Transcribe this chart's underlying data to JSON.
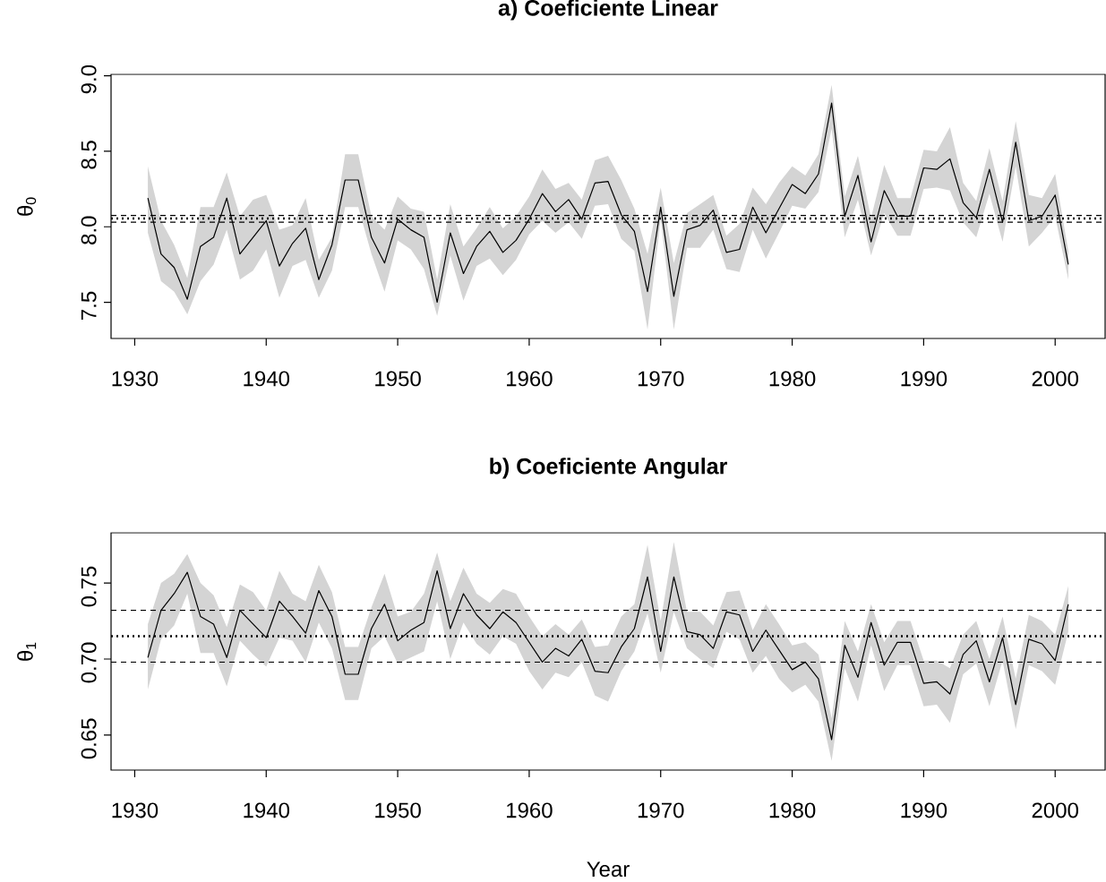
{
  "chart_data": [
    {
      "type": "line",
      "title": "a) Coeficiente Linear",
      "ylabel": "θ$_{0}$",
      "x": [
        1931,
        1932,
        1933,
        1934,
        1935,
        1936,
        1937,
        1938,
        1939,
        1940,
        1941,
        1942,
        1943,
        1944,
        1945,
        1946,
        1947,
        1948,
        1949,
        1950,
        1951,
        1952,
        1953,
        1954,
        1955,
        1956,
        1957,
        1958,
        1959,
        1960,
        1961,
        1962,
        1963,
        1964,
        1965,
        1966,
        1967,
        1968,
        1969,
        1970,
        1971,
        1972,
        1973,
        1974,
        1975,
        1976,
        1977,
        1978,
        1979,
        1980,
        1981,
        1982,
        1983,
        1984,
        1985,
        1986,
        1987,
        1988,
        1989,
        1990,
        1991,
        1992,
        1993,
        1994,
        1995,
        1996,
        1997,
        1998,
        1999,
        2000,
        2001
      ],
      "xlim": [
        1928.2,
        2003.8
      ],
      "xticks": [
        1930,
        1940,
        1950,
        1960,
        1970,
        1980,
        1990,
        2000
      ],
      "ylim": [
        7.26,
        9.01
      ],
      "yticks": [
        7.5,
        {
          "value": 8.0,
          "label": "8.0"
        },
        8.5,
        {
          "value": 9.0,
          "label": "9.0"
        }
      ],
      "series": [
        {
          "color": "#000000",
          "values": [
            8.19,
            7.82,
            7.73,
            7.52,
            7.87,
            7.93,
            8.19,
            7.82,
            7.93,
            8.04,
            7.74,
            7.89,
            7.99,
            7.65,
            7.88,
            8.31,
            8.31,
            7.93,
            7.76,
            8.05,
            7.98,
            7.93,
            7.5,
            7.96,
            7.69,
            7.87,
            7.97,
            7.83,
            7.91,
            8.05,
            8.22,
            8.1,
            8.18,
            8.05,
            8.29,
            8.3,
            8.08,
            7.97,
            7.57,
            8.13,
            7.54,
            7.98,
            8.01,
            8.11,
            7.83,
            7.85,
            8.13,
            7.96,
            8.12,
            8.28,
            8.22,
            8.35,
            8.82,
            8.07,
            8.34,
            7.9,
            8.24,
            8.07,
            8.07,
            8.39,
            8.38,
            8.45,
            8.16,
            8.06,
            8.38,
            8.03,
            8.56,
            8.04,
            8.07,
            8.21,
            7.75
          ],
          "upper": [
            8.4,
            8.04,
            7.88,
            7.66,
            8.13,
            8.13,
            8.36,
            8.07,
            8.18,
            8.21,
            7.98,
            8.01,
            8.19,
            7.78,
            7.93,
            8.48,
            8.48,
            8.07,
            7.98,
            8.2,
            8.12,
            8.1,
            7.65,
            8.15,
            7.87,
            7.99,
            8.13,
            7.99,
            8.07,
            8.2,
            8.38,
            8.25,
            8.29,
            8.18,
            8.44,
            8.47,
            8.31,
            8.12,
            7.82,
            8.26,
            7.76,
            8.09,
            8.15,
            8.21,
            7.94,
            8.02,
            8.26,
            8.15,
            8.29,
            8.4,
            8.34,
            8.48,
            8.94,
            8.2,
            8.47,
            8.06,
            8.41,
            8.19,
            8.19,
            8.51,
            8.5,
            8.66,
            8.29,
            8.17,
            8.52,
            8.17,
            8.7,
            8.21,
            8.19,
            8.35,
            7.84
          ],
          "lower": [
            7.96,
            7.64,
            7.57,
            7.42,
            7.64,
            7.75,
            7.98,
            7.65,
            7.71,
            7.85,
            7.53,
            7.74,
            7.78,
            7.53,
            7.71,
            8.13,
            8.13,
            7.82,
            7.57,
            7.91,
            7.85,
            7.72,
            7.41,
            7.81,
            7.51,
            7.74,
            7.79,
            7.68,
            7.78,
            7.95,
            8.04,
            7.96,
            8.03,
            7.92,
            8.14,
            8.15,
            7.92,
            7.84,
            7.32,
            8.05,
            7.32,
            7.86,
            7.86,
            7.98,
            7.72,
            7.7,
            7.98,
            7.79,
            7.96,
            8.14,
            8.12,
            8.23,
            8.65,
            7.93,
            8.18,
            7.81,
            8.09,
            7.94,
            7.94,
            8.25,
            8.26,
            8.24,
            8.03,
            7.93,
            8.22,
            7.9,
            8.4,
            7.87,
            7.96,
            8.07,
            7.65
          ]
        }
      ],
      "ref_lines": [
        {
          "axis": "y",
          "value": 8.03,
          "line_style": "dashed"
        },
        {
          "axis": "y",
          "value": 8.055,
          "line_style": "dotted"
        },
        {
          "axis": "y",
          "value": 8.075,
          "line_style": "dashed"
        }
      ]
    },
    {
      "type": "line",
      "title": "b) Coeficiente Angular",
      "ylabel": "θ$_{1}$",
      "xlabel": "Year",
      "x": [
        1931,
        1932,
        1933,
        1934,
        1935,
        1936,
        1937,
        1938,
        1939,
        1940,
        1941,
        1942,
        1943,
        1944,
        1945,
        1946,
        1947,
        1948,
        1949,
        1950,
        1951,
        1952,
        1953,
        1954,
        1955,
        1956,
        1957,
        1958,
        1959,
        1960,
        1961,
        1962,
        1963,
        1964,
        1965,
        1966,
        1967,
        1968,
        1969,
        1970,
        1971,
        1972,
        1973,
        1974,
        1975,
        1976,
        1977,
        1978,
        1979,
        1980,
        1981,
        1982,
        1983,
        1984,
        1985,
        1986,
        1987,
        1988,
        1989,
        1990,
        1991,
        1992,
        1993,
        1994,
        1995,
        1996,
        1997,
        1998,
        1999,
        2000,
        2001
      ],
      "xlim": [
        1928.2,
        2003.8
      ],
      "xticks": [
        1930,
        1940,
        1950,
        1960,
        1970,
        1980,
        1990,
        2000
      ],
      "ylim": [
        0.627,
        0.783
      ],
      "yticks": [
        0.65,
        {
          "value": 0.7,
          "label": "0.70"
        },
        0.75
      ],
      "series": [
        {
          "color": "#000000",
          "values": [
            0.701,
            0.732,
            0.743,
            0.757,
            0.728,
            0.723,
            0.701,
            0.732,
            0.723,
            0.714,
            0.738,
            0.728,
            0.717,
            0.745,
            0.728,
            0.69,
            0.69,
            0.72,
            0.736,
            0.712,
            0.719,
            0.724,
            0.758,
            0.72,
            0.743,
            0.729,
            0.72,
            0.731,
            0.724,
            0.711,
            0.698,
            0.707,
            0.702,
            0.713,
            0.692,
            0.691,
            0.708,
            0.72,
            0.754,
            0.705,
            0.754,
            0.718,
            0.716,
            0.707,
            0.731,
            0.729,
            0.705,
            0.719,
            0.706,
            0.693,
            0.698,
            0.687,
            0.647,
            0.709,
            0.688,
            0.724,
            0.696,
            0.711,
            0.711,
            0.684,
            0.685,
            0.677,
            0.703,
            0.712,
            0.685,
            0.714,
            0.67,
            0.713,
            0.71,
            0.699,
            0.736
          ],
          "upper": [
            0.723,
            0.75,
            0.756,
            0.769,
            0.75,
            0.742,
            0.721,
            0.749,
            0.744,
            0.732,
            0.758,
            0.743,
            0.738,
            0.762,
            0.744,
            0.708,
            0.708,
            0.734,
            0.756,
            0.728,
            0.731,
            0.743,
            0.77,
            0.738,
            0.76,
            0.743,
            0.737,
            0.746,
            0.743,
            0.728,
            0.715,
            0.723,
            0.716,
            0.726,
            0.708,
            0.709,
            0.728,
            0.736,
            0.775,
            0.725,
            0.777,
            0.731,
            0.731,
            0.722,
            0.744,
            0.745,
            0.719,
            0.736,
            0.723,
            0.709,
            0.711,
            0.703,
            0.661,
            0.725,
            0.705,
            0.736,
            0.711,
            0.725,
            0.725,
            0.699,
            0.699,
            0.694,
            0.716,
            0.725,
            0.7,
            0.728,
            0.687,
            0.729,
            0.725,
            0.716,
            0.748
          ],
          "lower": [
            0.68,
            0.713,
            0.722,
            0.743,
            0.704,
            0.704,
            0.682,
            0.712,
            0.703,
            0.695,
            0.714,
            0.712,
            0.698,
            0.724,
            0.707,
            0.673,
            0.673,
            0.707,
            0.715,
            0.697,
            0.701,
            0.705,
            0.738,
            0.7,
            0.724,
            0.71,
            0.703,
            0.715,
            0.71,
            0.692,
            0.68,
            0.691,
            0.688,
            0.698,
            0.676,
            0.672,
            0.692,
            0.705,
            0.73,
            0.691,
            0.731,
            0.707,
            0.7,
            0.694,
            0.718,
            0.713,
            0.691,
            0.702,
            0.687,
            0.678,
            0.683,
            0.672,
            0.633,
            0.694,
            0.672,
            0.709,
            0.679,
            0.696,
            0.696,
            0.669,
            0.67,
            0.658,
            0.69,
            0.697,
            0.669,
            0.699,
            0.654,
            0.696,
            0.692,
            0.683,
            0.718
          ]
        }
      ],
      "ref_lines": [
        {
          "axis": "y",
          "value": 0.698,
          "line_style": "dashed"
        },
        {
          "axis": "y",
          "value": 0.715,
          "line_style": "dotted"
        },
        {
          "axis": "y",
          "value": 0.732,
          "line_style": "dashed"
        }
      ]
    }
  ]
}
